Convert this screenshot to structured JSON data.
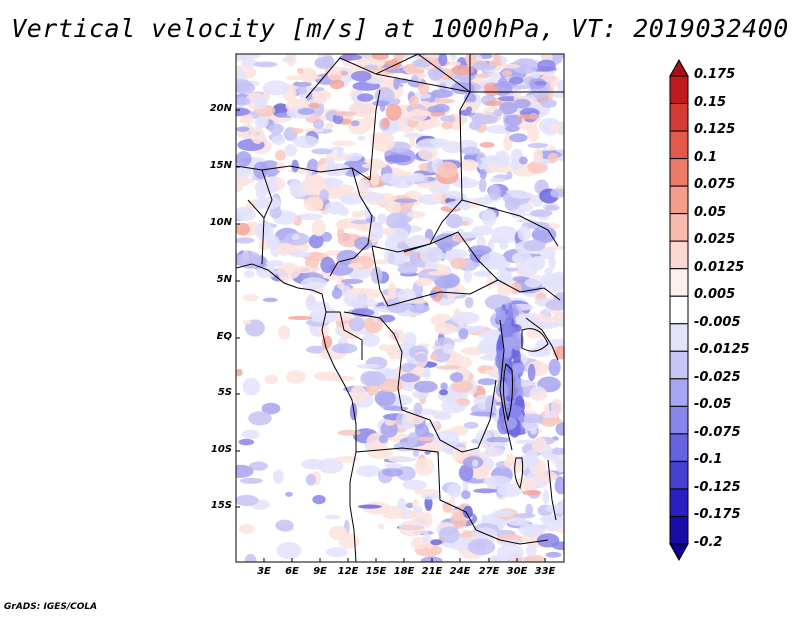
{
  "title": "Vertical velocity [m/s] at 1000hPa, VT: 2019032400",
  "credit": "GrADS: IGES/COLA",
  "lat_labels": [
    "20N",
    "15N",
    "10N",
    "5N",
    "EQ",
    "5S",
    "10S",
    "15S"
  ],
  "lon_labels": [
    "3E",
    "6E",
    "9E",
    "12E",
    "15E",
    "18E",
    "21E",
    "24E",
    "27E",
    "30E",
    "33E"
  ],
  "colorbar": {
    "labels": [
      "0.175",
      "0.15",
      "0.125",
      "0.1",
      "0.075",
      "0.05",
      "0.025",
      "0.0125",
      "0.005",
      "-0.005",
      "-0.0125",
      "-0.025",
      "-0.05",
      "-0.075",
      "-0.1",
      "-0.125",
      "-0.175",
      "-0.2"
    ],
    "colors": [
      "#a50f15",
      "#c01a1e",
      "#d53b35",
      "#e35a4d",
      "#ed7b68",
      "#f49d8b",
      "#f8bbb0",
      "#fbd9d2",
      "#fdf0ec",
      "#ffffff",
      "#e2e2fb",
      "#c6c6f7",
      "#a7a6f1",
      "#8785ea",
      "#6663e0",
      "#4640d2",
      "#2a1fc0",
      "#1a0ca6",
      "#100090"
    ]
  },
  "map": {
    "background": "#ffffff",
    "border_color": "#000000",
    "positive_color": "#f4a79b",
    "negative_color": "#7d78e8"
  }
}
